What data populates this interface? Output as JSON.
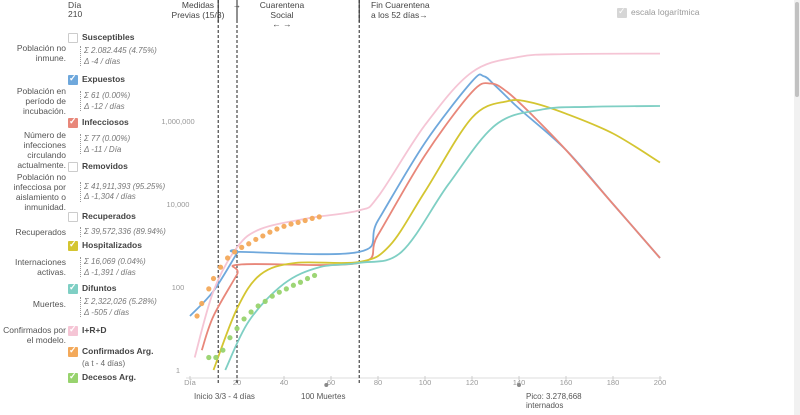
{
  "header": {
    "day_label": "Día",
    "day_value": "210",
    "measures_label": "Medidas Previas (15/3)",
    "measures_arrow": "→",
    "distancing_label": "Cuarentena Social",
    "distancing_arrows": "← →",
    "end_label": "Fin Cuarentena a los 52 días→",
    "log_scale_label": "escala logarítmica"
  },
  "series_panel": [
    {
      "id": "susceptibles",
      "title": "Susceptibles",
      "color": "#ffffff",
      "checked": false,
      "row_label": "Población no inmune.",
      "stat1": "Σ 2.082.445 (4.75%)",
      "stat2": "Δ -4 / días"
    },
    {
      "id": "expuestos",
      "title": "Expuestos",
      "color": "#6fa8dc",
      "checked": true,
      "row_label": "Población en período de incubación.",
      "stat1": "Σ 61 (0.00%)",
      "stat2": "Δ -12 / días"
    },
    {
      "id": "infecciosos",
      "title": "Infecciosos",
      "color": "#e8877a",
      "checked": true,
      "row_label": "Número de infecciones circulando actualmente.",
      "stat1": "Σ 77 (0.00%)",
      "stat2": "Δ -11 / Día"
    },
    {
      "id": "removidos",
      "title": "Removidos",
      "color": "#ffffff",
      "checked": false,
      "row_label": "Población no infecciosa por aislamiento o inmunidad.",
      "stat1": "Σ 41,911,393 (95.25%)",
      "stat2": "Δ -1,304 / días"
    },
    {
      "id": "recuperados",
      "title": "Recuperados",
      "color": "#ffffff",
      "checked": false,
      "row_label": "Recuperados",
      "stat1": "Σ 39,572,336 (89.94%)",
      "stat2": ""
    },
    {
      "id": "hospitalizados",
      "title": "Hospitalizados",
      "color": "#d4c531",
      "checked": true,
      "row_label": "Internaciones activas.",
      "stat1": "Σ 16,069 (0.04%)",
      "stat2": "Δ -1,391 / días"
    },
    {
      "id": "difuntos",
      "title": "Difuntos",
      "color": "#7fcfc4",
      "checked": true,
      "row_label": "Muertes.",
      "stat1": "Σ 2,322,026 (5.28%)",
      "stat2": "Δ -505 / días"
    },
    {
      "id": "ird",
      "title": "I+R+D",
      "color": "#f5c5d5",
      "checked": true,
      "row_label": "Confirmados por el modelo.",
      "stat1": "",
      "stat2": ""
    },
    {
      "id": "confirmados",
      "title": "Confirmados Arg.",
      "color": "#f3a95a",
      "checked": true,
      "row_label": "",
      "stat1": "",
      "stat2": "",
      "note": "(a t - 4 días)"
    },
    {
      "id": "decesos",
      "title": "Decesos Arg.",
      "color": "#98d36e",
      "checked": true,
      "row_label": "",
      "stat1": "",
      "stat2": ""
    }
  ],
  "annotations": {
    "inicio": "Inicio 3/3 - 4 días",
    "muertes": "100 Muertes",
    "pico": "Pico: 3.278,668 internados"
  },
  "chart_data": {
    "type": "line",
    "y_scale": "log",
    "xlabel": "",
    "ylabel": "",
    "x_ticks": [
      "Día",
      "20",
      "40",
      "60",
      "80",
      "100",
      "120",
      "140",
      "160",
      "180",
      "200"
    ],
    "x_tick_values": [
      0,
      20,
      40,
      60,
      80,
      100,
      120,
      140,
      160,
      180,
      200
    ],
    "y_ticks": [
      "1",
      "100",
      "10,000",
      "1,000,000"
    ],
    "y_tick_values": [
      1,
      100,
      10000,
      1000000
    ],
    "xlim": [
      0,
      200
    ],
    "ylim": [
      1,
      100000000
    ],
    "vlines": [
      {
        "x": 12
      },
      {
        "x": 20
      },
      {
        "x": 72
      }
    ],
    "series": [
      {
        "name": "Expuestos",
        "color": "#6fa8dc",
        "points": [
          [
            0,
            20
          ],
          [
            10,
            80
          ],
          [
            20,
            650
          ],
          [
            21,
            700
          ],
          [
            72,
            700
          ],
          [
            80,
            4000
          ],
          [
            100,
            300000
          ],
          [
            120,
            9000000
          ],
          [
            125,
            12000000
          ],
          [
            130,
            7000000
          ],
          [
            140,
            2000000
          ],
          [
            160,
            200000
          ],
          [
            180,
            10000
          ],
          [
            200,
            500
          ]
        ]
      },
      {
        "name": "Infecciosos",
        "color": "#e8877a",
        "points": [
          [
            5,
            3
          ],
          [
            10,
            20
          ],
          [
            20,
            200
          ],
          [
            22,
            350
          ],
          [
            72,
            380
          ],
          [
            80,
            1800
          ],
          [
            100,
            150000
          ],
          [
            120,
            5000000
          ],
          [
            128,
            8000000
          ],
          [
            135,
            5000000
          ],
          [
            145,
            1500000
          ],
          [
            160,
            200000
          ],
          [
            180,
            10000
          ],
          [
            200,
            500
          ]
        ]
      },
      {
        "name": "Hospitalizados",
        "color": "#d4c531",
        "points": [
          [
            10,
            1
          ],
          [
            20,
            30
          ],
          [
            30,
            200
          ],
          [
            45,
            380
          ],
          [
            72,
            400
          ],
          [
            85,
            1000
          ],
          [
            100,
            20000
          ],
          [
            120,
            1200000
          ],
          [
            135,
            3000000
          ],
          [
            145,
            2800000
          ],
          [
            160,
            1500000
          ],
          [
            180,
            500000
          ],
          [
            200,
            100000
          ]
        ]
      },
      {
        "name": "Difuntos",
        "color": "#7fcfc4",
        "points": [
          [
            15,
            1
          ],
          [
            25,
            15
          ],
          [
            40,
            120
          ],
          [
            55,
            300
          ],
          [
            72,
            380
          ],
          [
            90,
            700
          ],
          [
            110,
            30000
          ],
          [
            130,
            800000
          ],
          [
            150,
            1900000
          ],
          [
            170,
            2200000
          ],
          [
            200,
            2300000
          ]
        ]
      },
      {
        "name": "I+R+D",
        "color": "#f5c5d5",
        "points": [
          [
            2,
            2
          ],
          [
            10,
            80
          ],
          [
            20,
            900
          ],
          [
            30,
            2500
          ],
          [
            50,
            4500
          ],
          [
            72,
            7000
          ],
          [
            80,
            15000
          ],
          [
            100,
            800000
          ],
          [
            120,
            15000000
          ],
          [
            140,
            35000000
          ],
          [
            160,
            41000000
          ],
          [
            200,
            42000000
          ]
        ]
      },
      {
        "name": "Confirmados Arg.",
        "color": "#f3a95a",
        "kind": "dots",
        "points": [
          [
            3,
            20
          ],
          [
            5,
            40
          ],
          [
            8,
            90
          ],
          [
            10,
            160
          ],
          [
            13,
            300
          ],
          [
            16,
            500
          ],
          [
            19,
            700
          ],
          [
            22,
            900
          ],
          [
            25,
            1100
          ],
          [
            28,
            1400
          ],
          [
            31,
            1700
          ],
          [
            34,
            2100
          ],
          [
            37,
            2500
          ],
          [
            40,
            2900
          ],
          [
            43,
            3300
          ],
          [
            46,
            3600
          ],
          [
            49,
            4000
          ],
          [
            52,
            4500
          ],
          [
            55,
            4900
          ]
        ]
      },
      {
        "name": "Decesos Arg.",
        "color": "#98d36e",
        "kind": "dots",
        "points": [
          [
            8,
            2
          ],
          [
            11,
            2
          ],
          [
            14,
            3
          ],
          [
            17,
            6
          ],
          [
            20,
            10
          ],
          [
            23,
            17
          ],
          [
            26,
            25
          ],
          [
            29,
            35
          ],
          [
            32,
            45
          ],
          [
            35,
            60
          ],
          [
            38,
            75
          ],
          [
            41,
            90
          ],
          [
            44,
            110
          ],
          [
            47,
            130
          ],
          [
            50,
            160
          ],
          [
            53,
            190
          ]
        ]
      }
    ]
  }
}
